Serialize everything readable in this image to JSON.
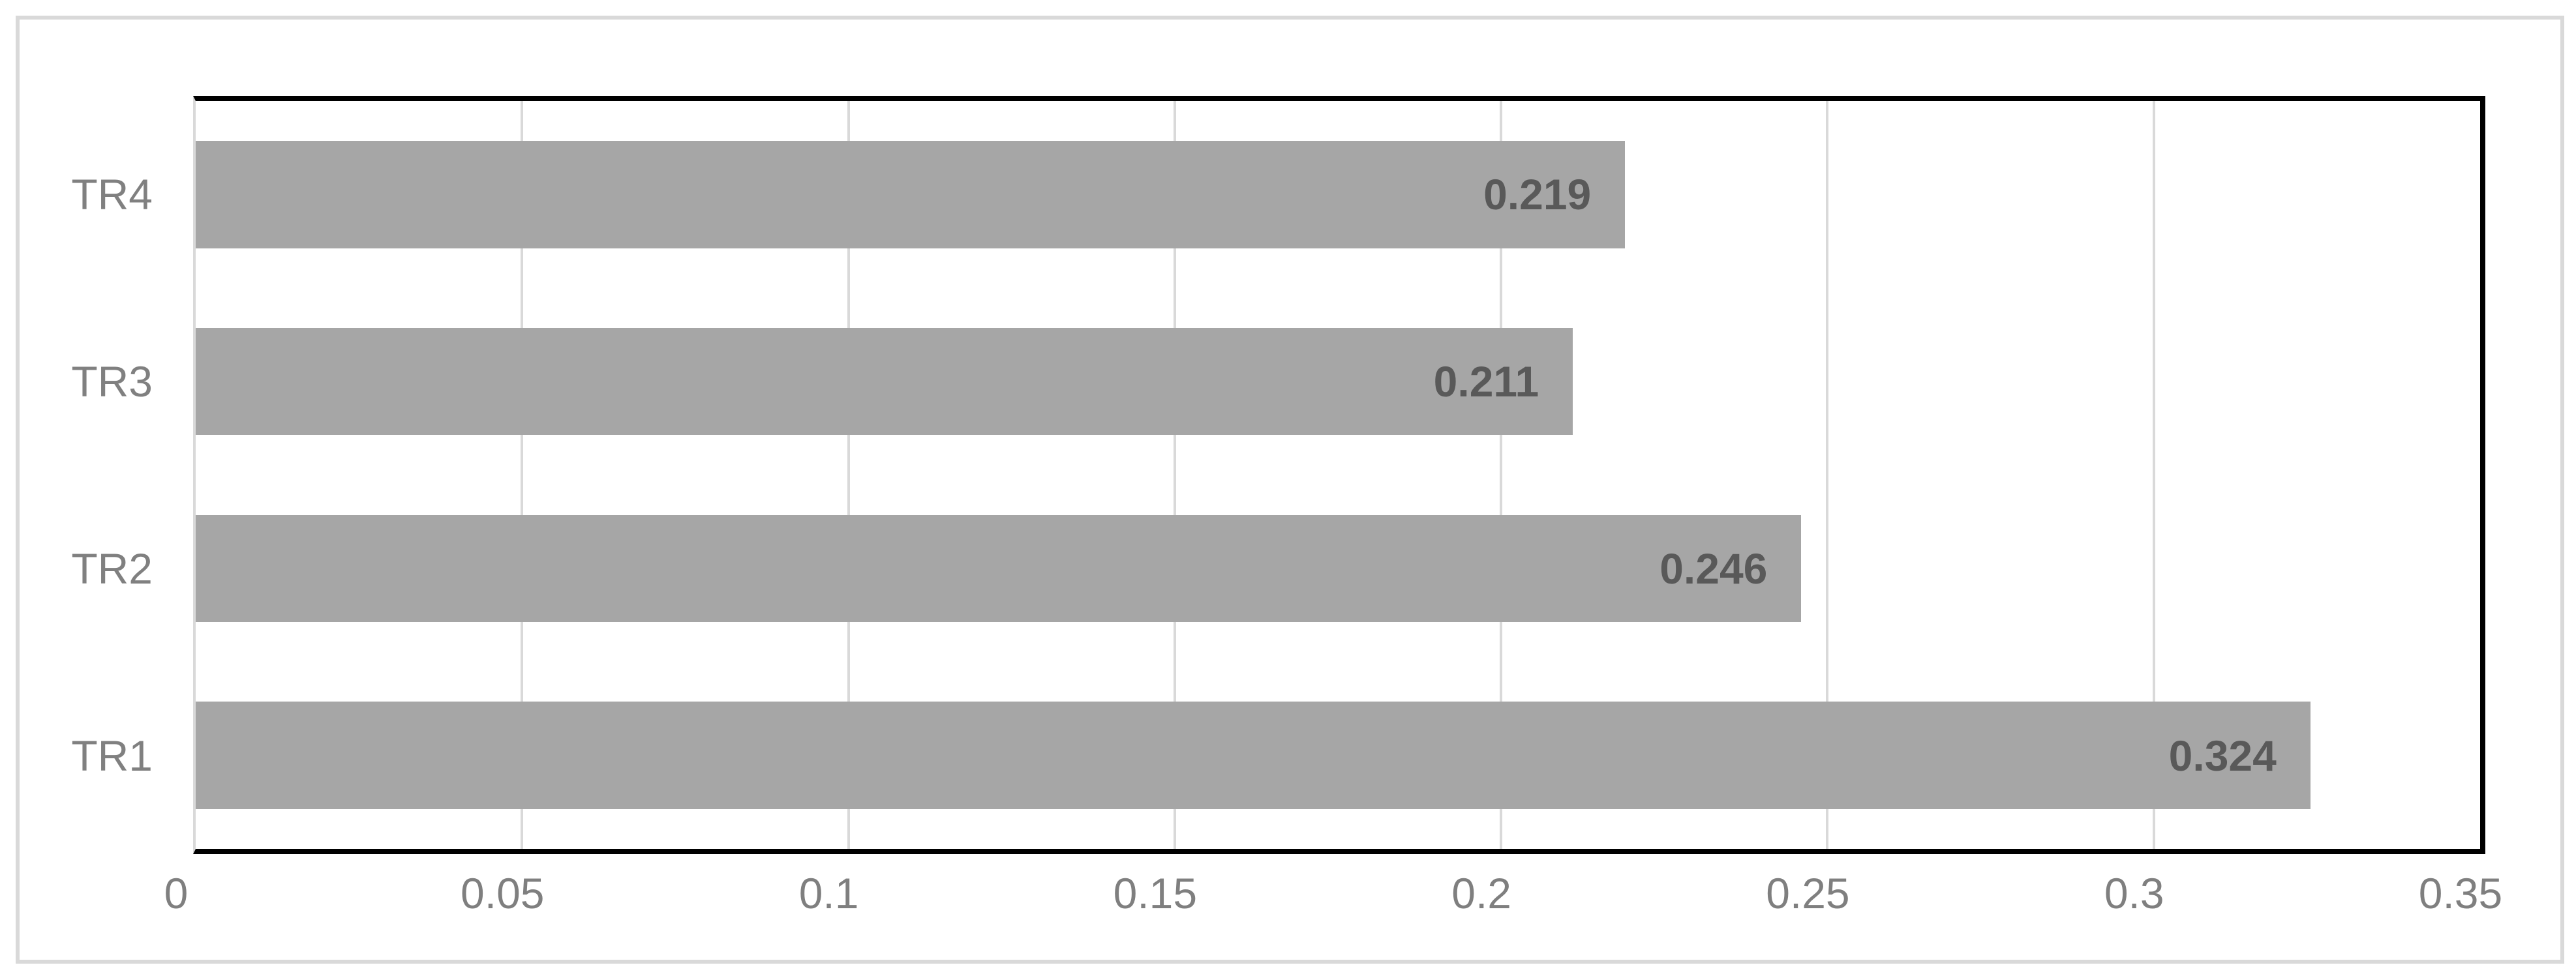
{
  "chart_data": {
    "type": "bar",
    "orientation": "horizontal",
    "title": "",
    "xlabel": "",
    "ylabel": "",
    "categories": [
      "TR4",
      "TR3",
      "TR2",
      "TR1"
    ],
    "values": [
      0.219,
      0.211,
      0.246,
      0.324
    ],
    "data_labels": [
      "0.219",
      "0.211",
      "0.246",
      "0.324"
    ],
    "xlim": [
      0,
      0.35
    ],
    "x_ticks": [
      {
        "value": 0,
        "label": "0"
      },
      {
        "value": 0.05,
        "label": "0.05"
      },
      {
        "value": 0.1,
        "label": "0.1"
      },
      {
        "value": 0.15,
        "label": "0.15"
      },
      {
        "value": 0.2,
        "label": "0.2"
      },
      {
        "value": 0.25,
        "label": "0.25"
      },
      {
        "value": 0.3,
        "label": "0.3"
      },
      {
        "value": 0.35,
        "label": "0.35"
      }
    ],
    "grid": "vertical-major",
    "legend": "none",
    "colors": {
      "bar_fill": "#A6A6A6",
      "data_label": "#595959",
      "tick_label": "#7F7F7F",
      "category_label": "#808080",
      "gridline": "#D9D9D9",
      "plot_border": "#000000",
      "frame_border": "#D9D9D9",
      "background": "#FFFFFF"
    }
  }
}
